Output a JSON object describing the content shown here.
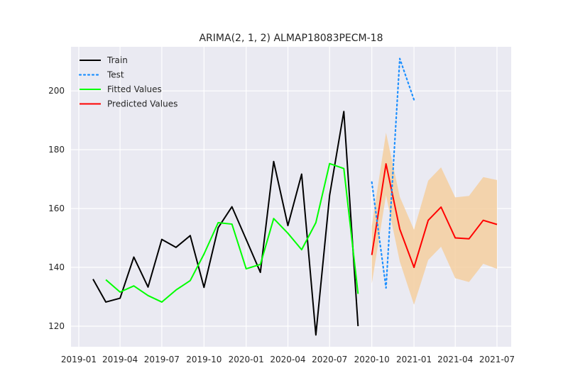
{
  "chart_data": {
    "type": "line",
    "title": "ARIMA(2, 1, 2) ALMAP18083PECM-18",
    "xlabel": "",
    "ylabel": "",
    "x_axis": {
      "type": "date",
      "range": [
        "2018-12-15",
        "2021-08-01"
      ],
      "ticks": [
        "2019-01-01",
        "2019-04-01",
        "2019-07-01",
        "2019-10-01",
        "2020-01-01",
        "2020-04-01",
        "2020-07-01",
        "2020-10-01",
        "2021-01-01",
        "2021-04-01",
        "2021-07-01"
      ],
      "tick_labels": [
        "2019-01",
        "2019-04",
        "2019-07",
        "2019-10",
        "2020-01",
        "2020-04",
        "2020-07",
        "2020-10",
        "2021-01",
        "2021-04",
        "2021-07"
      ]
    },
    "y_axis": {
      "range": [
        113,
        215
      ],
      "ticks": [
        120,
        140,
        160,
        180,
        200
      ],
      "tick_labels": [
        "120",
        "140",
        "160",
        "180",
        "200"
      ]
    },
    "grid": true,
    "legend": {
      "placement": "top-left",
      "entries": [
        "Train",
        "Test",
        "Fitted Values",
        "Predicted Values"
      ]
    },
    "colors": {
      "background": "#eaeaf2",
      "grid": "#ffffff",
      "train": "#000000",
      "test": "#1e90ff",
      "fitted": "#00ff00",
      "predicted": "#ff0000",
      "ci": "#f5cfa0"
    },
    "series": [
      {
        "name": "Train",
        "style": "solid",
        "x": [
          "2019-02-01",
          "2019-03-01",
          "2019-04-01",
          "2019-05-01",
          "2019-06-01",
          "2019-07-01",
          "2019-08-01",
          "2019-09-01",
          "2019-10-01",
          "2019-11-01",
          "2019-12-01",
          "2020-01-01",
          "2020-02-01",
          "2020-03-01",
          "2020-04-01",
          "2020-05-01",
          "2020-06-01",
          "2020-07-01",
          "2020-08-01",
          "2020-09-01"
        ],
        "values": [
          136,
          128.2,
          129.5,
          143.5,
          133.3,
          149.5,
          146.8,
          150.8,
          133.2,
          153.5,
          160.6,
          149.5,
          138.3,
          176,
          154.2,
          171.7,
          117,
          164.5,
          193,
          120
        ]
      },
      {
        "name": "Test",
        "style": "dotted",
        "x": [
          "2020-10-01",
          "2020-11-01",
          "2020-12-01",
          "2021-01-01"
        ],
        "values": [
          169,
          133,
          211,
          197
        ]
      },
      {
        "name": "Fitted Values",
        "style": "solid",
        "x": [
          "2019-03-01",
          "2019-04-01",
          "2019-05-01",
          "2019-06-01",
          "2019-07-01",
          "2019-08-01",
          "2019-09-01",
          "2019-10-01",
          "2019-11-01",
          "2019-12-01",
          "2020-01-01",
          "2020-02-01",
          "2020-03-01",
          "2020-04-01",
          "2020-05-01",
          "2020-06-01",
          "2020-07-01",
          "2020-08-01",
          "2020-09-01"
        ],
        "values": [
          135.8,
          131.6,
          133.7,
          130.4,
          128.2,
          132.3,
          135.5,
          144.5,
          155.2,
          154.7,
          139.5,
          141.0,
          156.6,
          151.6,
          146.0,
          155.2,
          175.3,
          173.6,
          131.0
        ]
      },
      {
        "name": "Predicted Values",
        "style": "solid",
        "x": [
          "2020-10-01",
          "2020-11-01",
          "2020-12-01",
          "2021-01-01",
          "2021-02-01",
          "2021-03-01",
          "2021-04-01",
          "2021-05-01",
          "2021-06-01",
          "2021-07-01"
        ],
        "values": [
          144.2,
          175.2,
          153.0,
          140.0,
          156.0,
          160.5,
          150.0,
          149.7,
          156.0,
          154.6
        ],
        "ci_lower": [
          134.5,
          164.5,
          142.0,
          127.3,
          142.5,
          147.0,
          136.3,
          135.0,
          141.2,
          139.5
        ],
        "ci_upper": [
          154.0,
          185.8,
          164.0,
          152.8,
          169.5,
          174.0,
          163.8,
          164.3,
          170.7,
          169.7
        ]
      }
    ]
  }
}
